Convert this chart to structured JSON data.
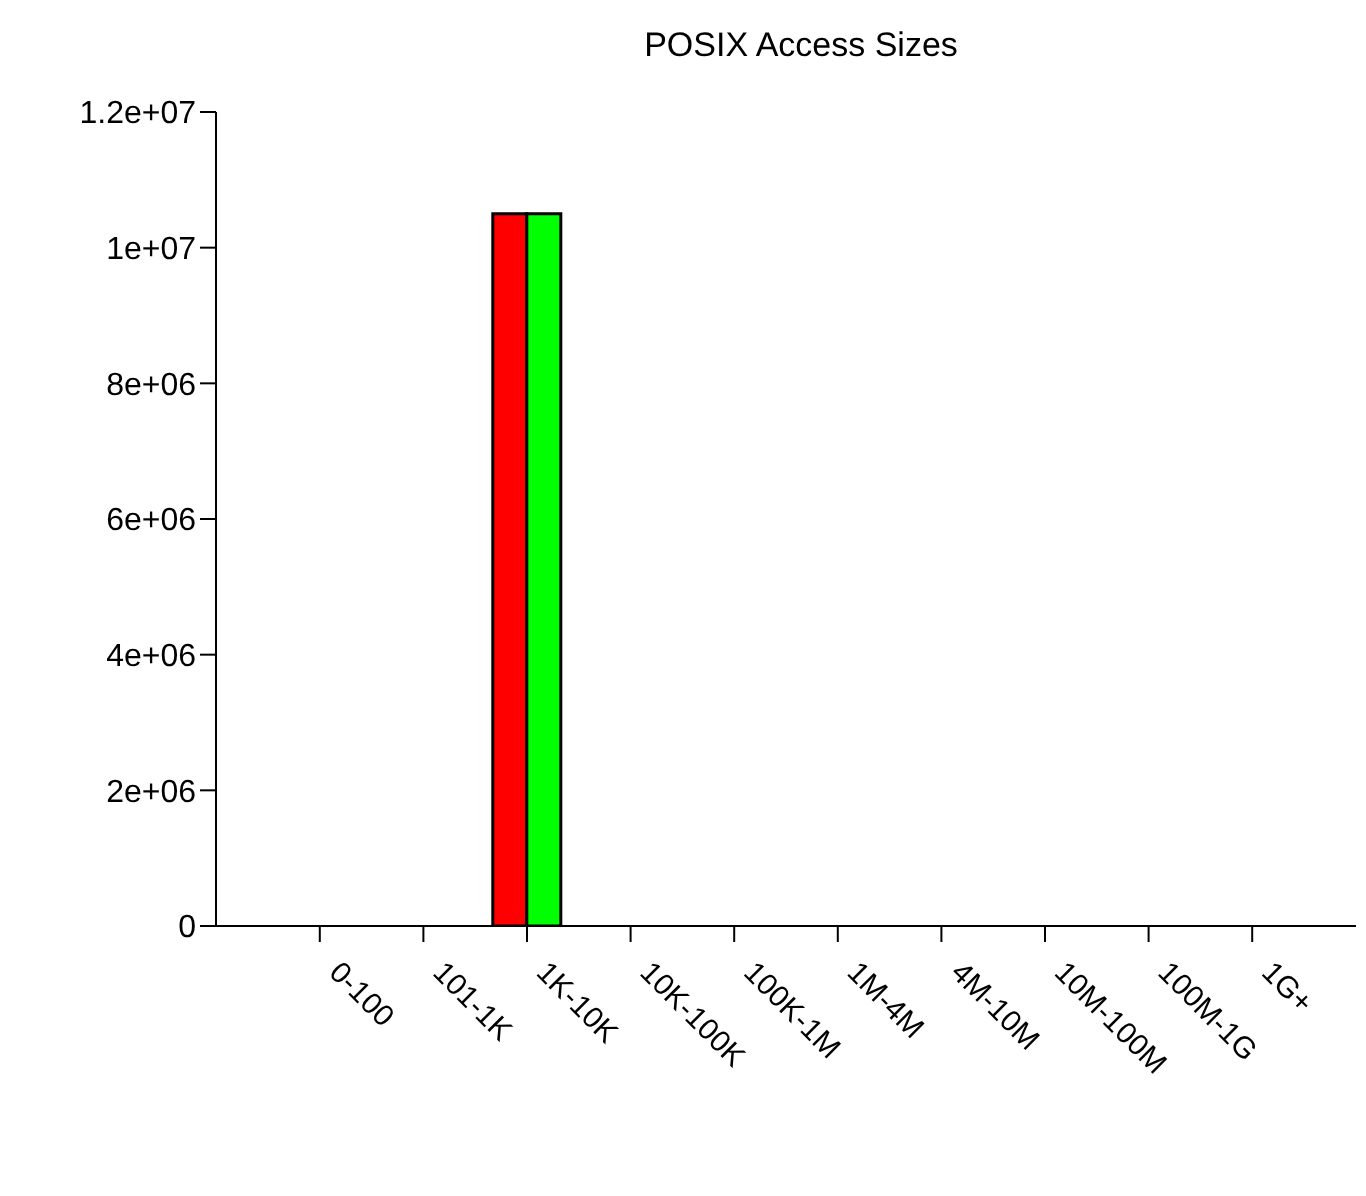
{
  "chart_data": {
    "type": "bar",
    "title": "POSIX Access Sizes",
    "categories": [
      "0-100",
      "101-1K",
      "1K-10K",
      "10K-100K",
      "100K-1M",
      "1M-4M",
      "4M-10M",
      "10M-100M",
      "100M-1G",
      "1G+"
    ],
    "series": [
      {
        "color": "#ff0000",
        "values": [
          0,
          0,
          10500000,
          0,
          0,
          0,
          0,
          0,
          0,
          0
        ]
      },
      {
        "color": "#00ff00",
        "values": [
          0,
          0,
          10500000,
          0,
          0,
          0,
          0,
          0,
          0,
          0
        ]
      }
    ],
    "ylim": [
      0,
      12000000
    ],
    "yticks": [
      0,
      {
        "value": 2000000,
        "label": "2e+06"
      },
      {
        "value": 4000000,
        "label": "4e+06"
      },
      {
        "value": 6000000,
        "label": "6e+06"
      },
      {
        "value": 8000000,
        "label": "8e+06"
      },
      {
        "value": 10000000,
        "label": "1e+07"
      },
      {
        "value": 12000000,
        "label": "1.2e+07"
      }
    ],
    "grid": false,
    "legend": false
  }
}
